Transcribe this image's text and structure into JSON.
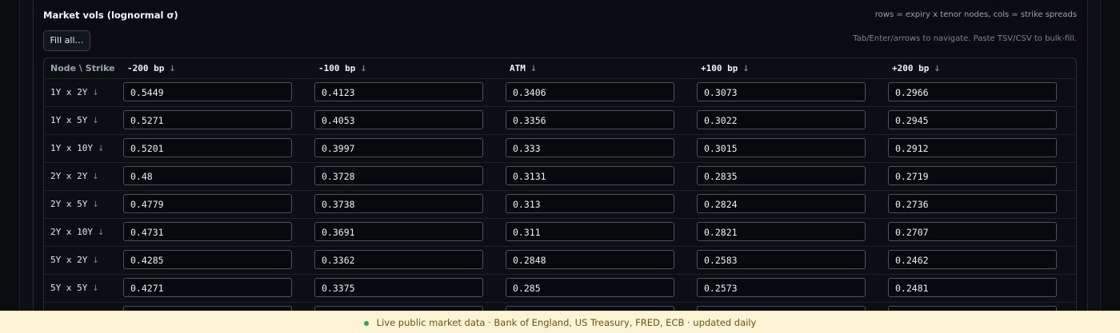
{
  "panel": {
    "title": "Market vols (lognormal σ)",
    "note": "rows = expiry x tenor nodes, cols = strike spreads",
    "fill_button": "Fill all…",
    "hint": "Tab/Enter/arrows to navigate. Paste TSV/CSV to bulk-fill."
  },
  "table": {
    "corner": "Node \\ Strike",
    "sort_icon": "↓",
    "columns": [
      "-200 bp",
      "-100 bp",
      "ATM",
      "+100 bp",
      "+200 bp"
    ],
    "rows": [
      {
        "node": "1Y x 2Y",
        "values": [
          0.5449,
          0.4123,
          0.3406,
          0.3073,
          0.2966
        ]
      },
      {
        "node": "1Y x 5Y",
        "values": [
          0.5271,
          0.4053,
          0.3356,
          0.3022,
          0.2945
        ]
      },
      {
        "node": "1Y x 10Y",
        "values": [
          0.5201,
          0.3997,
          0.333,
          0.3015,
          0.2912
        ]
      },
      {
        "node": "2Y x 2Y",
        "values": [
          0.48,
          0.3728,
          0.3131,
          0.2835,
          0.2719
        ]
      },
      {
        "node": "2Y x 5Y",
        "values": [
          0.4779,
          0.3738,
          0.313,
          0.2824,
          0.2736
        ]
      },
      {
        "node": "2Y x 10Y",
        "values": [
          0.4731,
          0.3691,
          0.311,
          0.2821,
          0.2707
        ]
      },
      {
        "node": "5Y x 2Y",
        "values": [
          0.4285,
          0.3362,
          0.2848,
          0.2583,
          0.2462
        ]
      },
      {
        "node": "5Y x 5Y",
        "values": [
          0.4271,
          0.3375,
          0.285,
          0.2573,
          0.2481
        ]
      }
    ]
  },
  "footer": {
    "text": "Live public market data · Bank of England, US Treasury, FRED, ECB · updated daily"
  }
}
